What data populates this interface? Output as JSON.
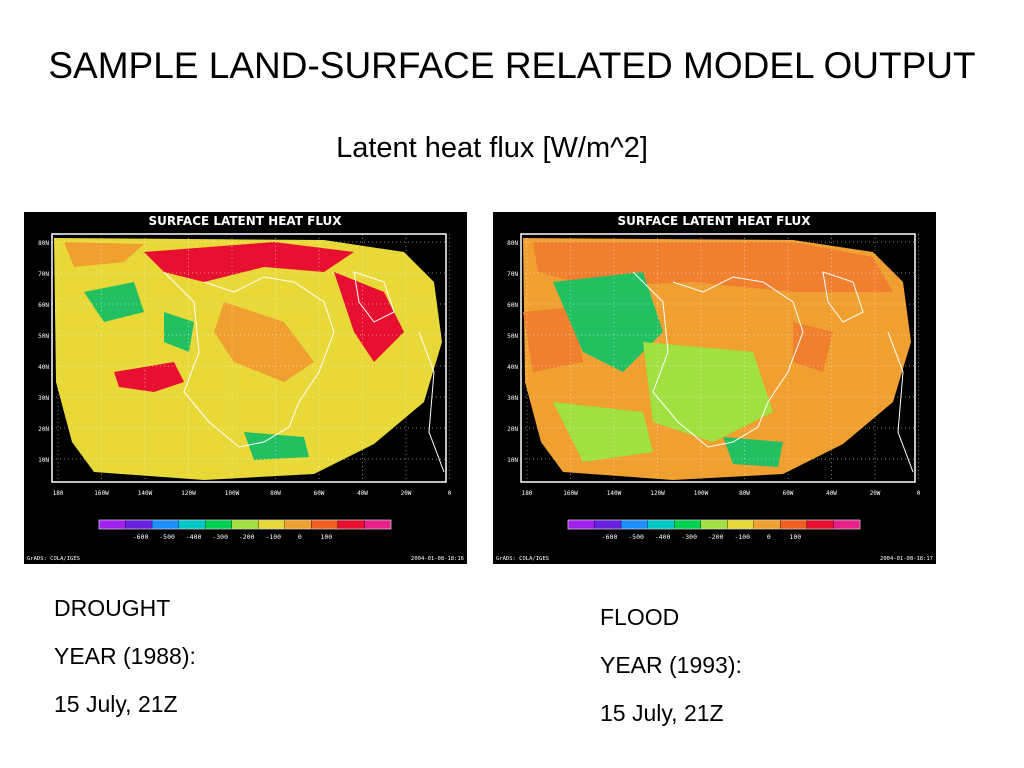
{
  "slide": {
    "title": "SAMPLE LAND-SURFACE RELATED MODEL OUTPUT",
    "subtitle": "Latent heat flux [W/m^2]"
  },
  "maps": [
    {
      "id": "drought",
      "title": "SURFACE LATENT HEAT FLUX",
      "lat_labels": [
        "80N",
        "70N",
        "60N",
        "50N",
        "40N",
        "30N",
        "20N",
        "10N"
      ],
      "lon_labels": [
        "180",
        "160W",
        "140W",
        "120W",
        "100W",
        "80W",
        "60W",
        "40W",
        "20W",
        "0"
      ],
      "colorbar_labels": [
        "-600",
        "-500",
        "-400",
        "-300",
        "-200",
        "-100",
        "0",
        "100"
      ],
      "colorbar_colors": [
        "#a020f0",
        "#6a20e0",
        "#1e90ff",
        "#00c8c8",
        "#00d050",
        "#a0e040",
        "#e8d838",
        "#f0a030",
        "#f06020",
        "#e81030",
        "#e8208a"
      ],
      "footer_left": "GrADS: COLA/IGES",
      "footer_right": "2004-01-08-18:16",
      "dominant_colors": [
        "#e8d838",
        "#f0a030",
        "#e81030",
        "#22c060"
      ],
      "caption": [
        "DROUGHT",
        "YEAR (1988):",
        "15 July, 21Z"
      ]
    },
    {
      "id": "flood",
      "title": "SURFACE LATENT HEAT FLUX",
      "lat_labels": [
        "80N",
        "70N",
        "60N",
        "50N",
        "40N",
        "30N",
        "20N",
        "10N"
      ],
      "lon_labels": [
        "180",
        "160W",
        "140W",
        "120W",
        "100W",
        "80W",
        "60W",
        "40W",
        "20W",
        "0"
      ],
      "colorbar_labels": [
        "-600",
        "-500",
        "-400",
        "-300",
        "-200",
        "-100",
        "0",
        "100"
      ],
      "colorbar_colors": [
        "#a020f0",
        "#6a20e0",
        "#1e90ff",
        "#00c8c8",
        "#00d050",
        "#a0e040",
        "#e8d838",
        "#f0a030",
        "#f06020",
        "#e81030",
        "#e8208a"
      ],
      "footer_left": "GrADS: COLA/IGES",
      "footer_right": "2004-01-08-18:17",
      "dominant_colors": [
        "#f0a030",
        "#f08030",
        "#a0e040",
        "#22c060"
      ],
      "caption": [
        "FLOOD",
        "YEAR (1993):",
        "15 July, 21Z"
      ]
    }
  ]
}
